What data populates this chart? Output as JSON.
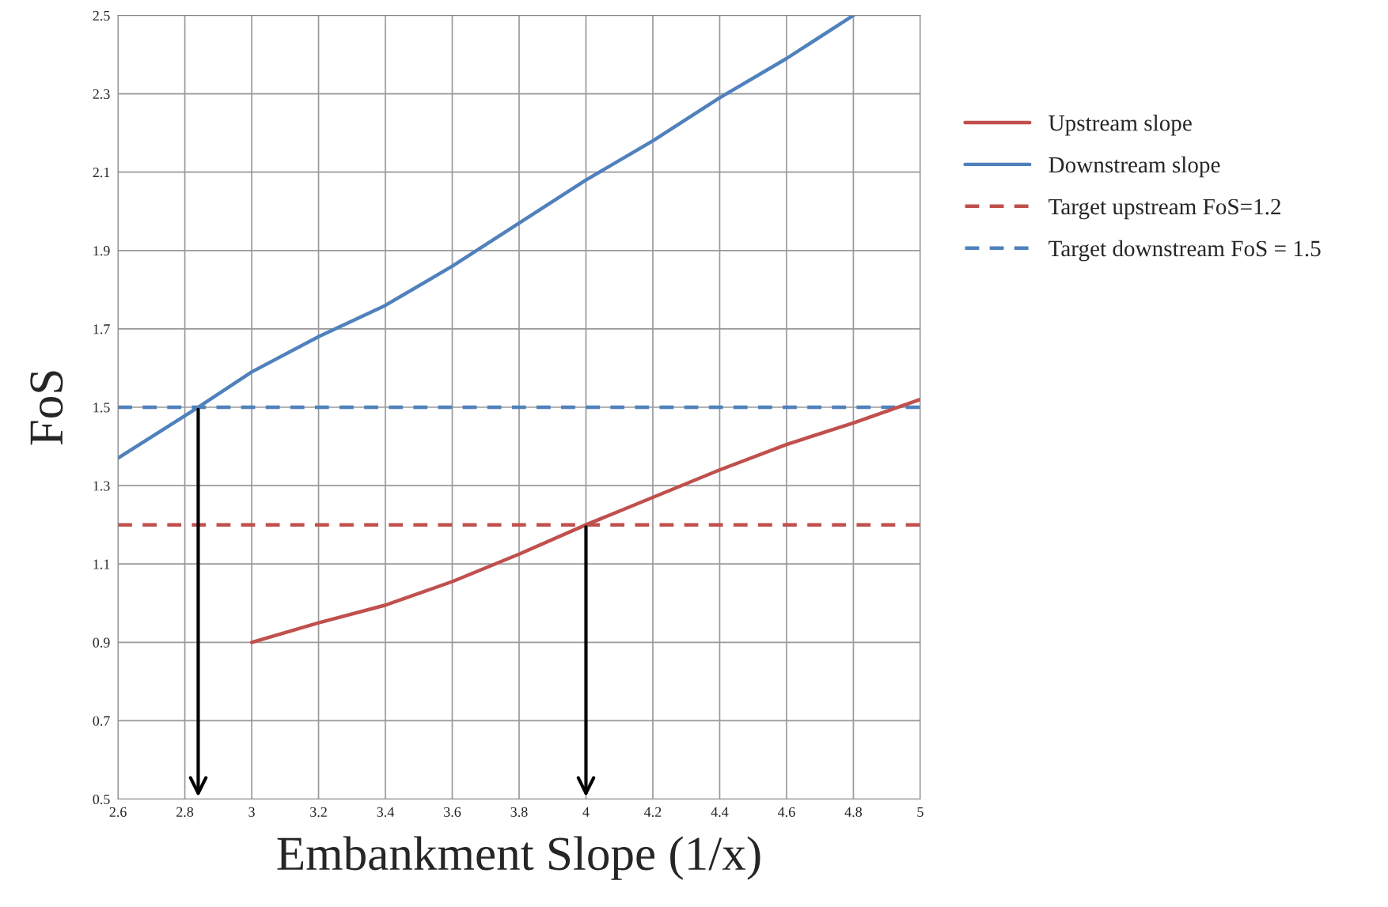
{
  "chart_data": {
    "type": "line",
    "xlabel": "Embankment Slope (1/x)",
    "ylabel": "FoS",
    "series": [
      {
        "name": "Upstream slope",
        "color": "#c0504d",
        "x": [
          3.0,
          3.2,
          3.4,
          3.6,
          3.8,
          4.0,
          4.2,
          4.4,
          4.6,
          4.8,
          5.0
        ],
        "values": [
          0.9,
          0.95,
          0.995,
          1.055,
          1.125,
          1.2,
          1.27,
          1.34,
          1.405,
          1.46,
          1.52
        ]
      },
      {
        "name": "Downstream slope",
        "color": "#4f81bd",
        "x": [
          2.6,
          2.84,
          3.0,
          3.2,
          3.4,
          3.6,
          3.8,
          4.0,
          4.2,
          4.4,
          4.6,
          4.8
        ],
        "values": [
          1.37,
          1.5,
          1.59,
          1.68,
          1.76,
          1.86,
          1.97,
          2.08,
          2.18,
          2.29,
          2.39,
          2.5
        ]
      }
    ],
    "ref_lines": [
      {
        "axis": "y",
        "value": 1.2,
        "label": "Target upstream FoS=1.2",
        "color": "#c0504d",
        "line_style": "dashed"
      },
      {
        "axis": "y",
        "value": 1.5,
        "label": "Target downstream FoS = 1.5",
        "color": "#4f81bd",
        "line_style": "dashed"
      }
    ],
    "xlim": [
      2.6,
      5
    ],
    "ylim": [
      0.5,
      2.5
    ],
    "xticks": [
      2.6,
      2.8,
      3,
      3.2,
      3.4,
      3.6,
      3.8,
      4,
      4.2,
      4.4,
      4.6,
      4.8,
      5
    ],
    "yticks": [
      {
        "value": 0.5,
        "label": "0.5"
      },
      {
        "value": 0.7,
        "label": "0.7"
      },
      {
        "value": 0.9,
        "label": "0.9"
      },
      {
        "value": 1.1,
        "label": "1.1"
      },
      {
        "value": 1.3,
        "label": "1.3"
      },
      {
        "value": 1.5,
        "label": "1.5"
      },
      {
        "value": 1.7,
        "label": "1.7"
      },
      {
        "value": 1.9,
        "label": "1.9"
      },
      {
        "value": 2.1,
        "label": "2.1"
      },
      {
        "value": 2.3,
        "label": "2.3"
      },
      {
        "value": 2.5,
        "label": "2.5"
      }
    ],
    "grid": true,
    "legend": "right",
    "line_style": "solid",
    "marker": "none"
  }
}
